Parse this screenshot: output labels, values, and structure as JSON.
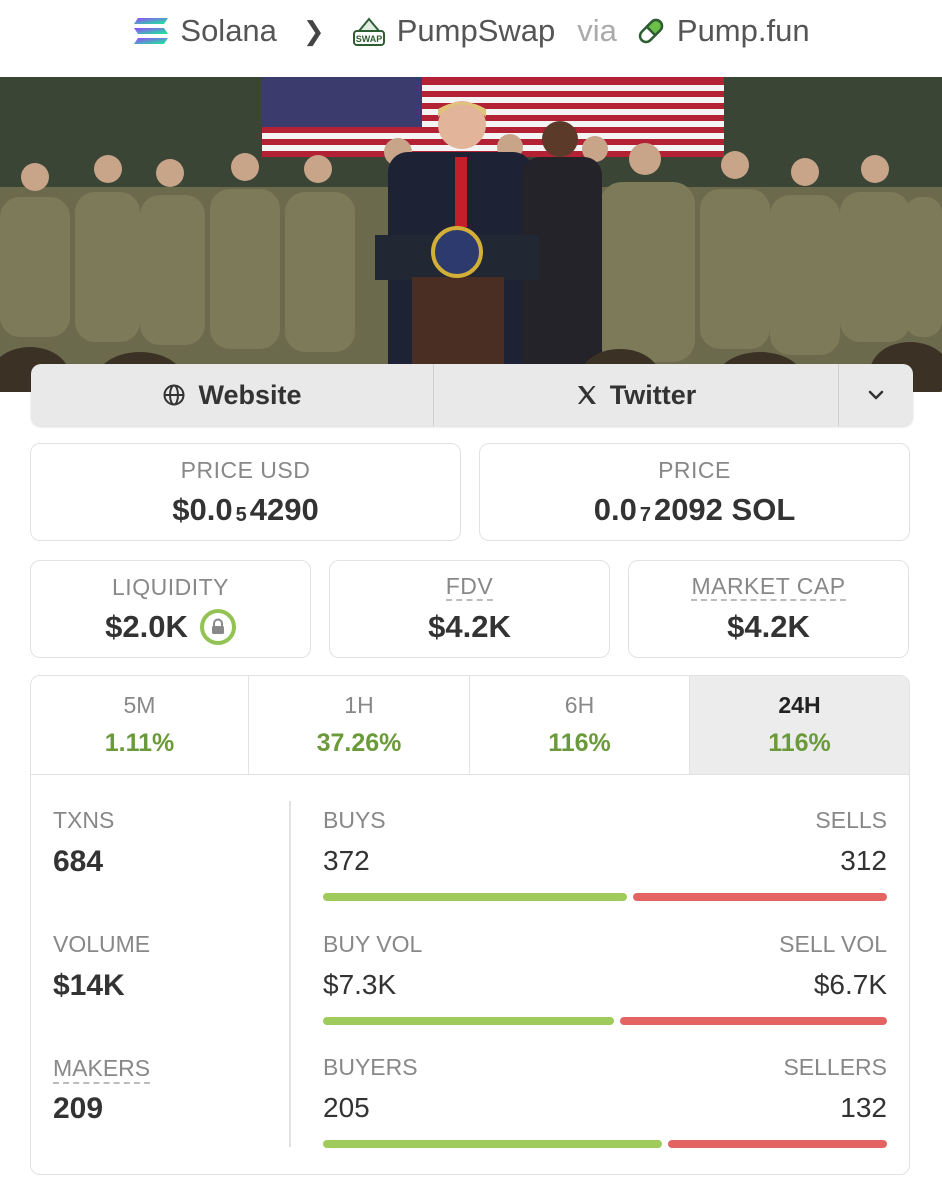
{
  "breadcrumb": {
    "chain": "Solana",
    "dex": "PumpSwap",
    "dex_icon_text": "SWAP",
    "via": "via",
    "launchpad": "Pump.fun"
  },
  "links": {
    "website": "Website",
    "twitter": "Twitter"
  },
  "price": {
    "usd_label": "PRICE USD",
    "usd_prefix": "$0.0",
    "usd_zeros": "5",
    "usd_digits": "4290",
    "native_label": "PRICE",
    "native_prefix": "0.0",
    "native_zeros": "7",
    "native_digits": "2092 SOL"
  },
  "metrics": {
    "liquidity_label": "LIQUIDITY",
    "liquidity_value": "$2.0K",
    "fdv_label": "FDV",
    "fdv_value": "$4.2K",
    "mcap_label": "MARKET CAP",
    "mcap_value": "$4.2K"
  },
  "timeframes": [
    {
      "label": "5M",
      "change": "1.11%"
    },
    {
      "label": "1H",
      "change": "37.26%"
    },
    {
      "label": "6H",
      "change": "116%"
    },
    {
      "label": "24H",
      "change": "116%"
    }
  ],
  "active_timeframe": "24H",
  "stats": {
    "txns_label": "TXNS",
    "txns_value": "684",
    "buys_label": "BUYS",
    "buys_value": "372",
    "sells_label": "SELLS",
    "sells_value": "312",
    "volume_label": "VOLUME",
    "volume_value": "$14K",
    "buy_vol_label": "BUY VOL",
    "buy_vol_value": "$7.3K",
    "sell_vol_label": "SELL VOL",
    "sell_vol_value": "$6.7K",
    "makers_label": "MAKERS",
    "makers_value": "209",
    "buyers_label": "BUYERS",
    "buyers_value": "205",
    "sellers_label": "SELLERS",
    "sellers_value": "132"
  },
  "ratios": {
    "buys_share": 0.544,
    "buy_vol_share": 0.521,
    "buyers_share": 0.608
  },
  "colors": {
    "positive": "#6b9a3a",
    "buy_bar": "#9ecb5b",
    "sell_bar": "#e46464",
    "lock_ring": "#93c255"
  }
}
